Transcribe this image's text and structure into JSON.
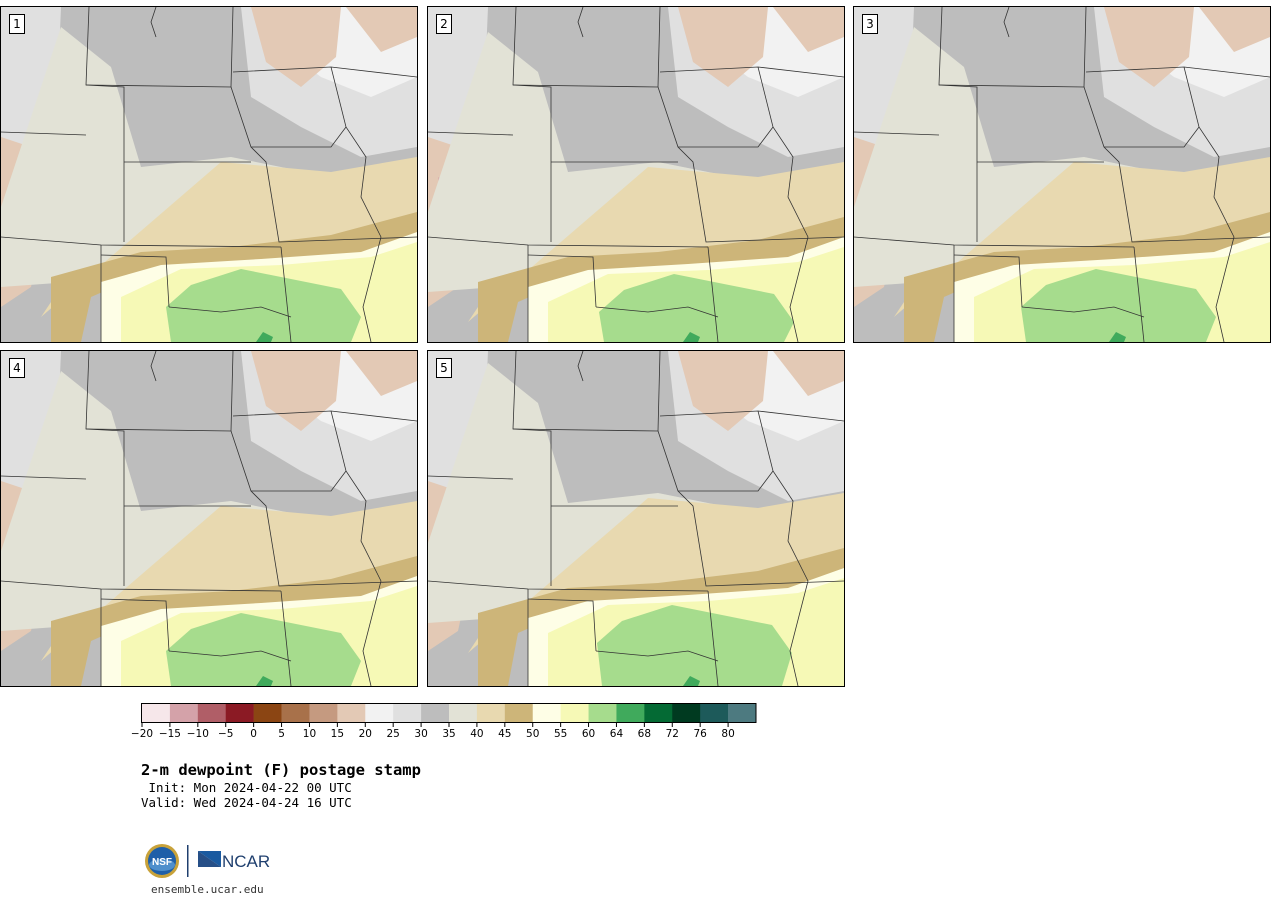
{
  "panels": [
    {
      "number": "1"
    },
    {
      "number": "2"
    },
    {
      "number": "3"
    },
    {
      "number": "4"
    },
    {
      "number": "5"
    }
  ],
  "colorbar": {
    "colors": [
      "#f6e7ea",
      "#d4a2a9",
      "#b05e67",
      "#8b1a24",
      "#8b4513",
      "#a8714a",
      "#c59a80",
      "#e3c9b5",
      "#f2f2f2",
      "#e0e0e0",
      "#bdbdbd",
      "#e2e2d6",
      "#e8d9b0",
      "#cdb579",
      "#fefee6",
      "#f6f9b6",
      "#a6dc8d",
      "#40aa5c",
      "#046a34",
      "#003a20",
      "#1d5a5a",
      "#4d7a80"
    ],
    "ticks": [
      "−20",
      "−15",
      "−10",
      "−5",
      "0",
      "5",
      "10",
      "15",
      "20",
      "25",
      "30",
      "35",
      "40",
      "45",
      "50",
      "55",
      "60",
      "64",
      "68",
      "72",
      "76",
      "80"
    ]
  },
  "title": "2-m dewpoint (F) postage stamp",
  "init": " Init: Mon 2024-04-22 00 UTC",
  "valid": "Valid: Wed 2024-04-24 16 UTC",
  "logos": {
    "left": "NSF",
    "right": "NCAR"
  },
  "website": "ensemble.ucar.edu"
}
